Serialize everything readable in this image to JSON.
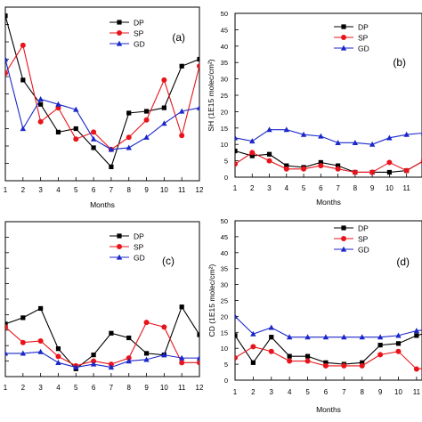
{
  "chart_data": [
    {
      "panel": "a",
      "type": "line",
      "tag": "(a)",
      "xlabel": "Months",
      "ylabel": "",
      "x": [
        1,
        2,
        3,
        4,
        5,
        6,
        7,
        8,
        9,
        10,
        11,
        12
      ],
      "xticks": [
        "1",
        "2",
        "3",
        "4",
        "5",
        "6",
        "7",
        "8",
        "9",
        "10",
        "11",
        "12"
      ],
      "xlim": [
        1,
        12
      ],
      "ylim": [
        0,
        50
      ],
      "show_y_ticklabels": false,
      "legend": "top-right",
      "series": [
        {
          "name": "DP",
          "marker": "square",
          "color": "#000000",
          "values": [
            47.5,
            29.0,
            22.0,
            14.0,
            15.0,
            9.5,
            4.0,
            19.5,
            20.0,
            21.0,
            33.0,
            35.0
          ]
        },
        {
          "name": "SP",
          "marker": "circle",
          "color": "#e8141b",
          "values": [
            31.0,
            39.0,
            17.0,
            21.0,
            12.0,
            14.0,
            9.0,
            12.5,
            17.5,
            29.0,
            13.0,
            33.0
          ]
        },
        {
          "name": "GD",
          "marker": "triangle",
          "color": "#1a27c9",
          "values": [
            35.0,
            15.0,
            23.5,
            22.0,
            20.5,
            12.0,
            9.0,
            9.5,
            12.5,
            16.5,
            20.0,
            21.0
          ]
        }
      ]
    },
    {
      "panel": "b",
      "type": "line",
      "tag": "(b)",
      "xlabel": "Months",
      "ylabel": "SH (1E15 molec/cm²)",
      "x": [
        1,
        2,
        3,
        4,
        5,
        6,
        7,
        8,
        9,
        10,
        11,
        12
      ],
      "xticks": [
        "1",
        "2",
        "3",
        "4",
        "5",
        "6",
        "7",
        "8",
        "9",
        "10",
        "11"
      ],
      "xlim": [
        1,
        11.9
      ],
      "ylim": [
        0,
        50
      ],
      "yticks": [
        0,
        5,
        10,
        15,
        20,
        25,
        30,
        35,
        40,
        45,
        50
      ],
      "legend": "top-right",
      "series": [
        {
          "name": "DP",
          "marker": "square",
          "color": "#000000",
          "values": [
            8.0,
            6.5,
            7.0,
            3.5,
            3.0,
            4.5,
            3.5,
            1.5,
            1.5,
            1.5,
            2.0,
            5.0
          ]
        },
        {
          "name": "SP",
          "marker": "circle",
          "color": "#e8141b",
          "values": [
            4.0,
            7.5,
            5.0,
            2.5,
            2.5,
            3.5,
            2.5,
            1.5,
            1.5,
            4.5,
            2.0,
            5.0
          ]
        },
        {
          "name": "GD",
          "marker": "triangle",
          "color": "#1a27c9",
          "values": [
            12.0,
            11.0,
            14.5,
            14.5,
            13.0,
            12.5,
            10.5,
            10.5,
            10.0,
            12.0,
            13.0,
            13.5
          ]
        }
      ]
    },
    {
      "panel": "c",
      "type": "line",
      "tag": "(c)",
      "xlabel": "",
      "ylabel": "",
      "x": [
        1,
        2,
        3,
        4,
        5,
        6,
        7,
        8,
        9,
        10,
        11,
        12
      ],
      "xticks": [
        "1",
        "2",
        "3",
        "4",
        "5",
        "6",
        "7",
        "8",
        "9",
        "10",
        "11",
        "12"
      ],
      "xlim": [
        1,
        12
      ],
      "ylim": [
        0,
        50
      ],
      "show_y_ticklabels": false,
      "legend": "top-right",
      "series": [
        {
          "name": "DP",
          "marker": "square",
          "color": "#000000",
          "values": [
            17.0,
            19.0,
            22.0,
            9.0,
            2.5,
            7.0,
            14.0,
            12.5,
            7.5,
            7.0,
            22.5,
            13.5
          ]
        },
        {
          "name": "SP",
          "marker": "circle",
          "color": "#e8141b",
          "values": [
            16.0,
            11.0,
            11.5,
            6.5,
            3.5,
            5.0,
            4.0,
            6.0,
            17.5,
            16.0,
            4.5,
            4.5
          ]
        },
        {
          "name": "GD",
          "marker": "triangle",
          "color": "#1a27c9",
          "values": [
            7.5,
            7.5,
            8.0,
            4.5,
            3.0,
            4.0,
            3.0,
            5.0,
            5.5,
            7.0,
            6.0,
            6.0
          ]
        }
      ]
    },
    {
      "panel": "d",
      "type": "line",
      "tag": "(d)",
      "xlabel": "Months",
      "ylabel": "CD (1E15 molec/cm²)",
      "x": [
        1,
        2,
        3,
        4,
        5,
        6,
        7,
        8,
        9,
        10,
        11,
        12
      ],
      "xticks": [
        "1",
        "2",
        "3",
        "4",
        "5",
        "6",
        "7",
        "8",
        "9",
        "10",
        "11"
      ],
      "xlim": [
        1,
        11.3
      ],
      "ylim": [
        0,
        50
      ],
      "yticks": [
        0,
        5,
        10,
        15,
        20,
        25,
        30,
        35,
        40,
        45,
        50
      ],
      "legend": "top-right",
      "series": [
        {
          "name": "DP",
          "marker": "square",
          "color": "#000000",
          "values": [
            14.0,
            5.5,
            13.5,
            7.5,
            7.5,
            5.5,
            5.0,
            5.5,
            11.0,
            11.5,
            14.0,
            15.5
          ]
        },
        {
          "name": "SP",
          "marker": "circle",
          "color": "#e8141b",
          "values": [
            7.0,
            10.5,
            9.0,
            6.0,
            6.0,
            4.5,
            4.5,
            4.5,
            8.0,
            9.0,
            3.5,
            4.0
          ]
        },
        {
          "name": "GD",
          "marker": "triangle",
          "color": "#1a27c9",
          "values": [
            20.0,
            14.5,
            16.5,
            13.5,
            13.5,
            13.5,
            13.5,
            13.5,
            13.5,
            14.0,
            15.5,
            16.0
          ]
        }
      ]
    }
  ]
}
